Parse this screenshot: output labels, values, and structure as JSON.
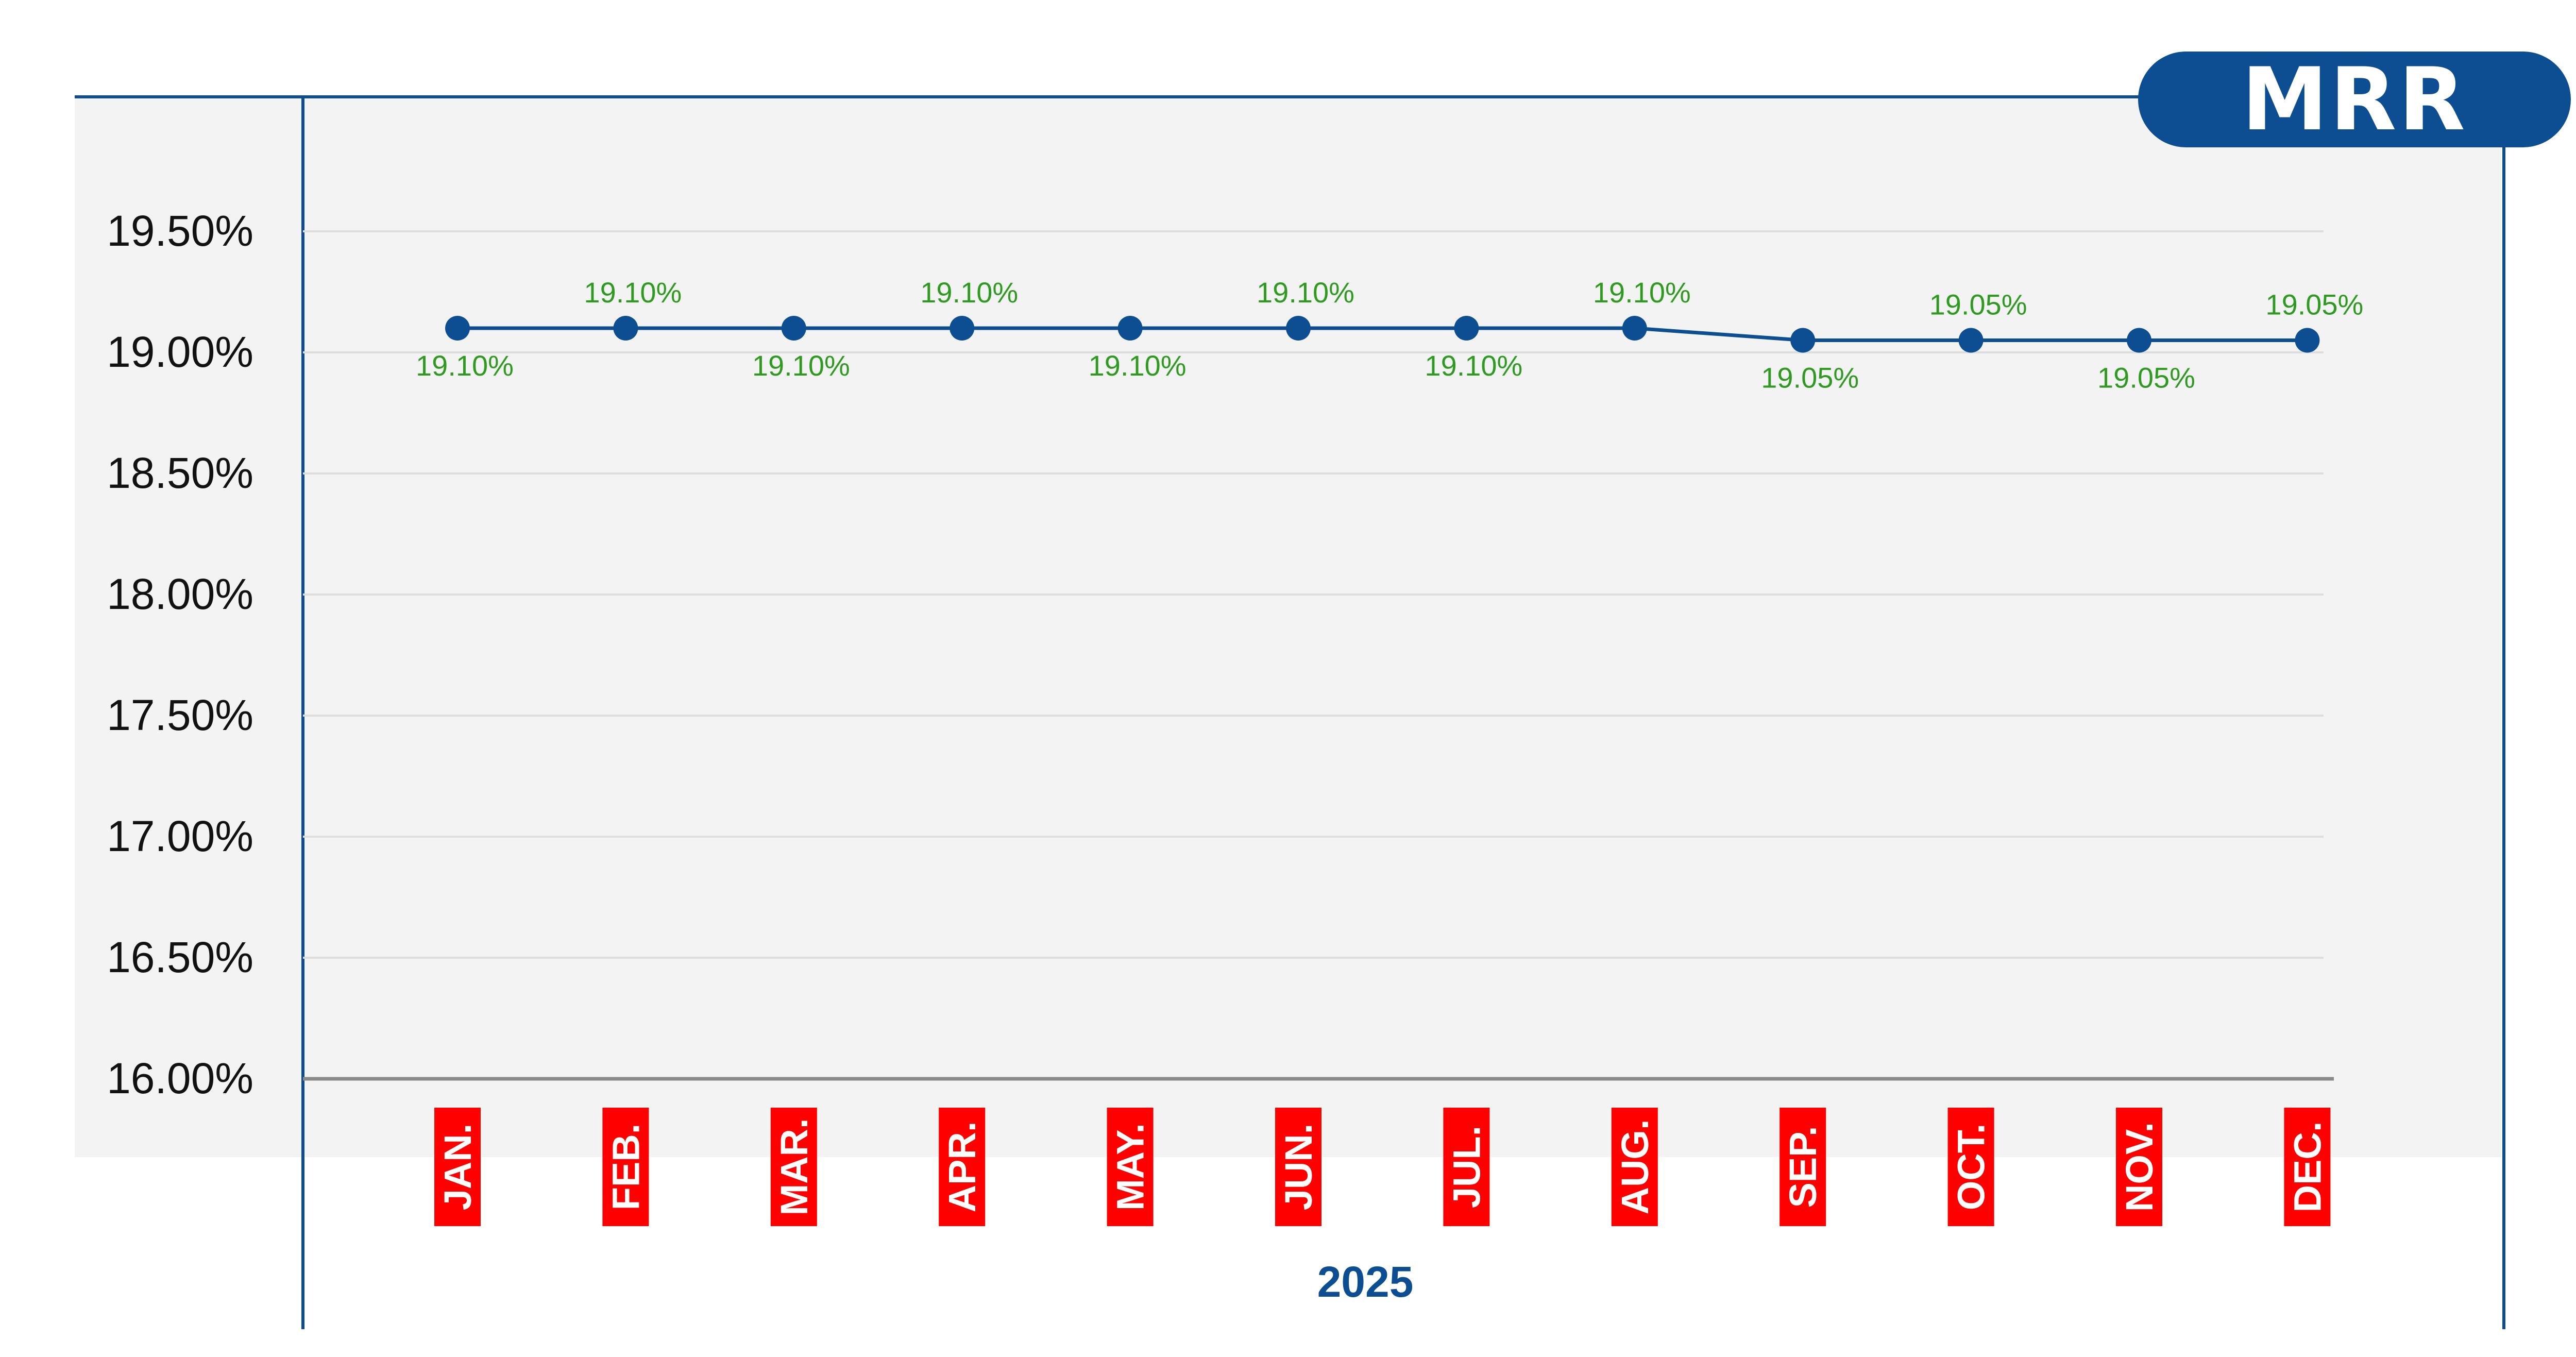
{
  "badge": {
    "label": "MRR"
  },
  "year_label": "2025",
  "colors": {
    "accent": "#0d4e92",
    "label_green": "#2e9a1f",
    "month_red": "#ff0000",
    "plot_bg": "#f3f3f3",
    "grid": "#dddddd",
    "baseline": "#8a8a8a"
  },
  "chart_data": {
    "type": "line",
    "categories": [
      "JAN.",
      "FEB.",
      "MAR.",
      "APR.",
      "MAY.",
      "JUN.",
      "JUL.",
      "AUG.",
      "SEP.",
      "OCT.",
      "NOV.",
      "DEC."
    ],
    "series": [
      {
        "values": [
          19.1,
          19.1,
          19.1,
          19.1,
          19.1,
          19.1,
          19.1,
          19.1,
          19.05,
          19.05,
          19.05,
          19.05
        ],
        "data_labels": [
          "19.10%",
          "19.10%",
          "19.10%",
          "19.10%",
          "19.10%",
          "19.10%",
          "19.10%",
          "19.10%",
          "19.05%",
          "19.05%",
          "19.05%",
          "19.05%"
        ],
        "label_positions": [
          "below",
          "above",
          "below",
          "above",
          "below",
          "above",
          "below",
          "above",
          "below",
          "above",
          "below",
          "above"
        ]
      }
    ],
    "yticks": [
      "16.00%",
      "16.50%",
      "17.00%",
      "17.50%",
      "18.00%",
      "18.50%",
      "19.00%",
      "19.50%"
    ],
    "ytick_values": [
      16.0,
      16.5,
      17.0,
      17.5,
      18.0,
      18.5,
      19.0,
      19.5
    ],
    "ylim": [
      16.0,
      19.5
    ],
    "grid": true,
    "xlabel": "2025",
    "title": "MRR"
  }
}
